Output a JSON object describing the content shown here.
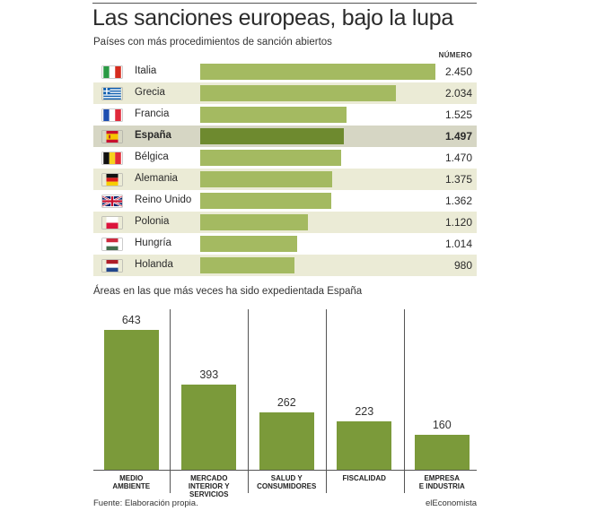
{
  "title": "Las sanciones europeas, bajo la lupa",
  "subtitle": "Países con más procedimientos de sanción abiertos",
  "value_header": "NÚMERO",
  "subtitle2": "Áreas en las que más veces ha sido expedientada España",
  "source": "Fuente: Elaboración propia.",
  "brand": "elEconomista",
  "colors": {
    "bar": "#a4ba61",
    "bar_highlight": "#6e8a2f",
    "row_shade": "#ebebd6",
    "row_highlight": "#d6d6c4",
    "area_bar": "#7b9a3a"
  },
  "chart_data": [
    {
      "type": "bar",
      "orientation": "horizontal",
      "title": "Países con más procedimientos de sanción abiertos",
      "value_label": "NÚMERO",
      "highlight": "España",
      "categories": [
        "Italia",
        "Grecia",
        "Francia",
        "España",
        "Bélgica",
        "Alemania",
        "Reino Unido",
        "Polonia",
        "Hungría",
        "Holanda"
      ],
      "display_values": [
        "2.450",
        "2.034",
        "1.525",
        "1.497",
        "1.470",
        "1.375",
        "1.362",
        "1.120",
        "1.014",
        "980"
      ],
      "values": [
        2450,
        2034,
        1525,
        1497,
        1470,
        1375,
        1362,
        1120,
        1014,
        980
      ],
      "flags": [
        "italy-flag-icon",
        "greece-flag-icon",
        "france-flag-icon",
        "spain-flag-icon",
        "belgium-flag-icon",
        "germany-flag-icon",
        "uk-flag-icon",
        "poland-flag-icon",
        "hungary-flag-icon",
        "netherlands-flag-icon"
      ]
    },
    {
      "type": "bar",
      "orientation": "vertical",
      "title": "Áreas en las que más veces ha sido expedientada España",
      "categories": [
        [
          "MEDIO",
          "AMBIENTE"
        ],
        [
          "MERCADO",
          "INTERIOR Y SERVICIOS"
        ],
        [
          "SALUD Y",
          "CONSUMIDORES"
        ],
        [
          "FISCALIDAD"
        ],
        [
          "EMPRESA",
          "E INDUSTRIA"
        ]
      ],
      "values": [
        643,
        393,
        262,
        223,
        160
      ]
    }
  ]
}
